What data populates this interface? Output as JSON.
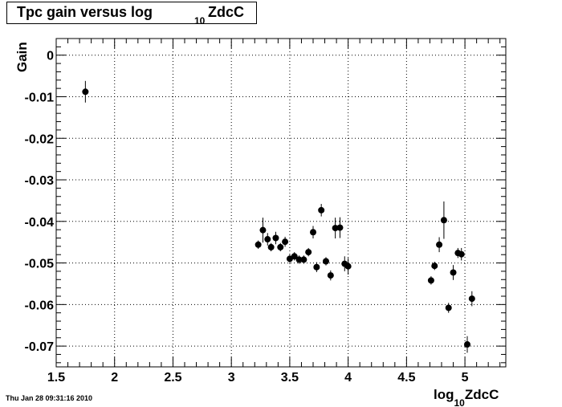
{
  "title": {
    "main": "Tpc gain versus log",
    "subscript": "10",
    "tail": "ZdcC"
  },
  "timestamp": "Thu Jan 28 09:31:16 2010",
  "chart_data": {
    "type": "scatter",
    "title": "Tpc gain versus log10ZdcC",
    "xlabel": {
      "main": "log",
      "subscript": "10",
      "tail": "ZdcC"
    },
    "ylabel": "Gain",
    "xlim": [
      1.5,
      5.35
    ],
    "ylim": [
      -0.075,
      0.004
    ],
    "grid": true,
    "x_ticks": [
      1.5,
      2,
      2.5,
      3,
      3.5,
      4,
      4.5,
      5
    ],
    "x_tick_labels": [
      "1.5",
      "2",
      "2.5",
      "3",
      "3.5",
      "4",
      "4.5",
      "5"
    ],
    "y_ticks": [
      0,
      -0.01,
      -0.02,
      -0.03,
      -0.04,
      -0.05,
      -0.06,
      -0.07
    ],
    "y_tick_labels": [
      "0",
      "-0.01",
      "-0.02",
      "-0.03",
      "-0.04",
      "-0.05",
      "-0.06",
      "-0.07"
    ],
    "points": [
      {
        "x": 1.75,
        "y": -0.0088,
        "err": 0.0026
      },
      {
        "x": 3.23,
        "y": -0.0456,
        "err": 0.001
      },
      {
        "x": 3.27,
        "y": -0.0421,
        "err": 0.003
      },
      {
        "x": 3.31,
        "y": -0.0443,
        "err": 0.0015
      },
      {
        "x": 3.34,
        "y": -0.0462,
        "err": 0.001
      },
      {
        "x": 3.38,
        "y": -0.044,
        "err": 0.0015
      },
      {
        "x": 3.42,
        "y": -0.0462,
        "err": 0.001
      },
      {
        "x": 3.46,
        "y": -0.0449,
        "err": 0.0012
      },
      {
        "x": 3.5,
        "y": -0.049,
        "err": 0.001
      },
      {
        "x": 3.54,
        "y": -0.0484,
        "err": 0.001
      },
      {
        "x": 3.58,
        "y": -0.0492,
        "err": 0.001
      },
      {
        "x": 3.62,
        "y": -0.0492,
        "err": 0.001
      },
      {
        "x": 3.66,
        "y": -0.0474,
        "err": 0.001
      },
      {
        "x": 3.7,
        "y": -0.0426,
        "err": 0.0015
      },
      {
        "x": 3.73,
        "y": -0.051,
        "err": 0.0012
      },
      {
        "x": 3.77,
        "y": -0.0373,
        "err": 0.0015
      },
      {
        "x": 3.81,
        "y": -0.0496,
        "err": 0.001
      },
      {
        "x": 3.85,
        "y": -0.053,
        "err": 0.0012
      },
      {
        "x": 3.89,
        "y": -0.0416,
        "err": 0.0025
      },
      {
        "x": 3.93,
        "y": -0.0415,
        "err": 0.0025
      },
      {
        "x": 3.97,
        "y": -0.0502,
        "err": 0.0018
      },
      {
        "x": 4.0,
        "y": -0.0508,
        "err": 0.002
      },
      {
        "x": 4.71,
        "y": -0.0542,
        "err": 0.001
      },
      {
        "x": 4.74,
        "y": -0.0507,
        "err": 0.001
      },
      {
        "x": 4.78,
        "y": -0.0456,
        "err": 0.0018
      },
      {
        "x": 4.82,
        "y": -0.0397,
        "err": 0.0045
      },
      {
        "x": 4.86,
        "y": -0.0608,
        "err": 0.0012
      },
      {
        "x": 4.9,
        "y": -0.0523,
        "err": 0.0018
      },
      {
        "x": 4.94,
        "y": -0.0476,
        "err": 0.0012
      },
      {
        "x": 4.97,
        "y": -0.0479,
        "err": 0.0015
      },
      {
        "x": 5.02,
        "y": -0.0696,
        "err": 0.002
      },
      {
        "x": 5.06,
        "y": -0.0586,
        "err": 0.0018
      }
    ]
  }
}
